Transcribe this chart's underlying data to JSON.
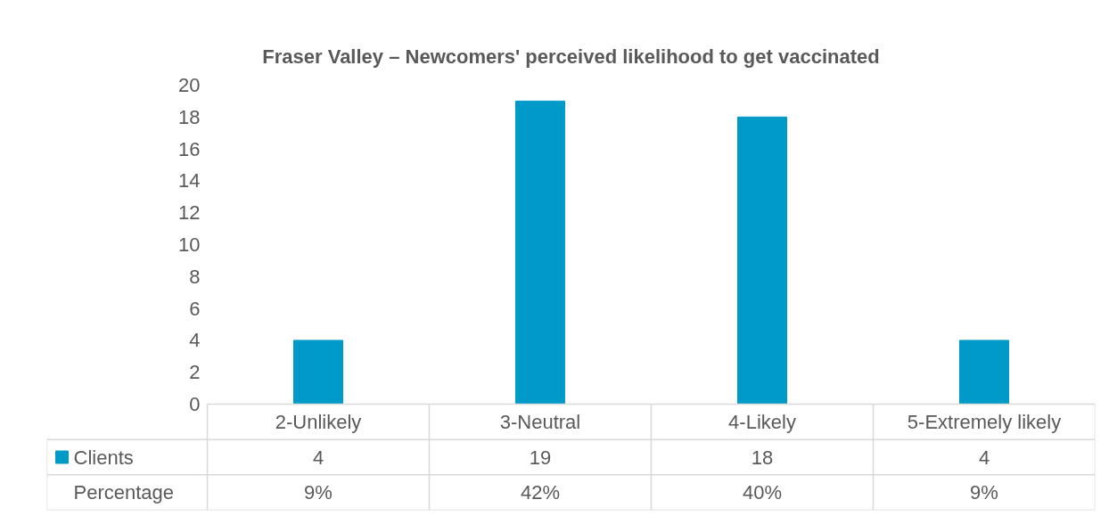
{
  "chart_data": {
    "type": "bar",
    "title": "Fraser Valley – Newcomers' perceived likelihood to get vaccinated",
    "categories": [
      "2-Unlikely",
      "3-Neutral",
      "4-Likely",
      "5-Extremely likely"
    ],
    "series": [
      {
        "name": "Clients",
        "color": "#009ac9",
        "values": [
          4,
          19,
          18,
          4
        ]
      }
    ],
    "data_labels": true,
    "legend": "bottom",
    "ylim": [
      0,
      20
    ],
    "yticks": [
      0,
      2,
      4,
      6,
      8,
      10,
      12,
      14,
      16,
      18,
      20
    ],
    "grid": false,
    "annotations": [
      "Percentage",
      "9%",
      "42%",
      "40%",
      "9%"
    ]
  }
}
